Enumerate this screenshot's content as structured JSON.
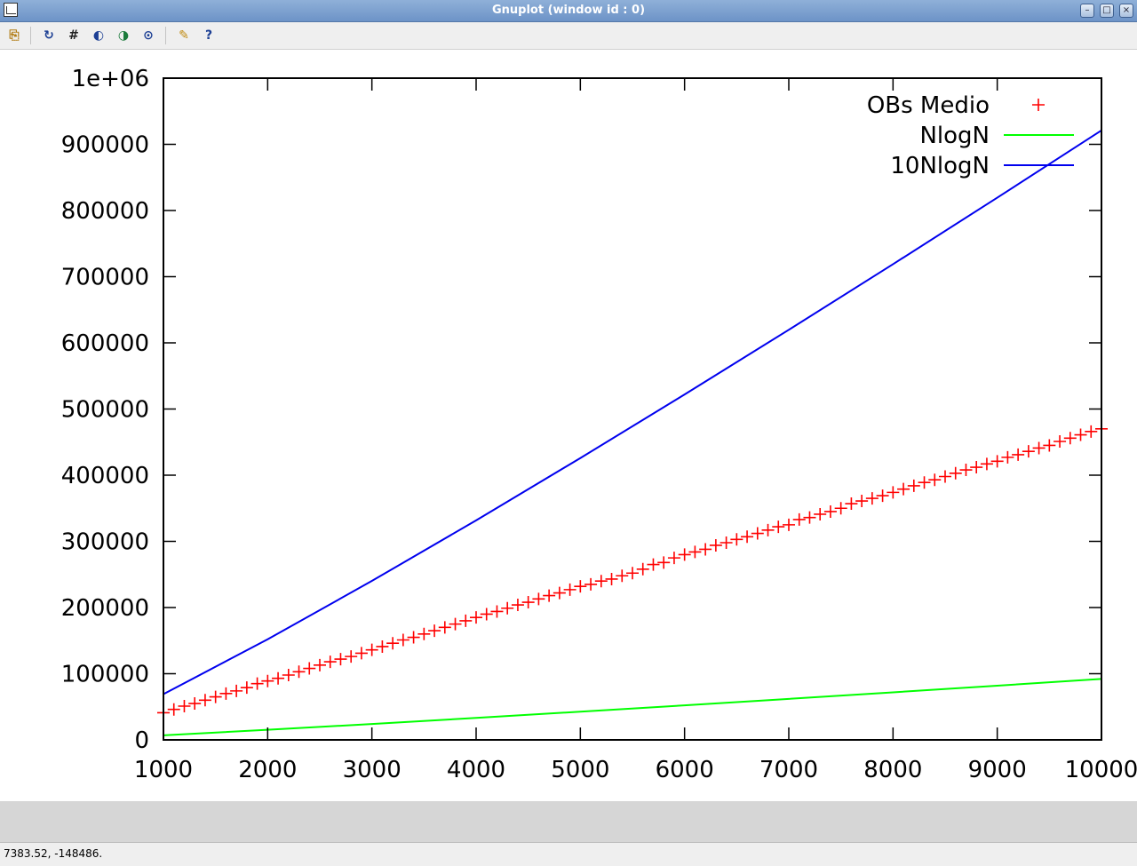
{
  "window": {
    "title": "Gnuplot (window id : 0)"
  },
  "toolbar": {
    "items": [
      "copy-to-clipboard",
      "replot",
      "toggle-grid",
      "previous-zoom",
      "next-zoom",
      "autoscale",
      "options",
      "help"
    ]
  },
  "status": {
    "coords": "7383.52, -148486."
  },
  "chart_data": {
    "type": "line",
    "title": "",
    "xlabel": "",
    "ylabel": "",
    "xlim": [
      1000,
      10000
    ],
    "ylim": [
      0,
      1000000
    ],
    "x_ticks": [
      1000,
      2000,
      3000,
      4000,
      5000,
      6000,
      7000,
      8000,
      9000,
      10000
    ],
    "y_ticks": [
      0,
      100000,
      200000,
      300000,
      400000,
      500000,
      600000,
      700000,
      800000,
      900000,
      1000000
    ],
    "x_tick_labels": [
      "1000",
      "2000",
      "3000",
      "4000",
      "5000",
      "6000",
      "7000",
      "8000",
      "9000",
      "10000"
    ],
    "y_tick_labels": [
      "0",
      "100000",
      "200000",
      "300000",
      "400000",
      "500000",
      "600000",
      "700000",
      "800000",
      "900000",
      "1e+06"
    ],
    "grid": false,
    "legend_position": "top-right",
    "series": [
      {
        "name": "OBs Medio",
        "style": "points",
        "marker": "+",
        "color": "#ff0000",
        "x": [
          1000,
          1100,
          1200,
          1300,
          1400,
          1500,
          1600,
          1700,
          1800,
          1900,
          2000,
          2100,
          2200,
          2300,
          2400,
          2500,
          2600,
          2700,
          2800,
          2900,
          3000,
          3100,
          3200,
          3300,
          3400,
          3500,
          3600,
          3700,
          3800,
          3900,
          4000,
          4100,
          4200,
          4300,
          4400,
          4500,
          4600,
          4700,
          4800,
          4900,
          5000,
          5100,
          5200,
          5300,
          5400,
          5500,
          5600,
          5700,
          5800,
          5900,
          6000,
          6100,
          6200,
          6300,
          6400,
          6500,
          6600,
          6700,
          6800,
          6900,
          7000,
          7100,
          7200,
          7300,
          7400,
          7500,
          7600,
          7700,
          7800,
          7900,
          8000,
          8100,
          8200,
          8300,
          8400,
          8500,
          8600,
          8700,
          8800,
          8900,
          9000,
          9100,
          9200,
          9300,
          9400,
          9500,
          9600,
          9700,
          9800,
          9900,
          10000
        ],
        "y": [
          41000,
          46000,
          51000,
          55000,
          60000,
          65000,
          70000,
          74000,
          79000,
          85000,
          89000,
          93000,
          98000,
          103000,
          108000,
          113000,
          118000,
          122000,
          126000,
          131000,
          136000,
          141000,
          146000,
          151000,
          155000,
          160000,
          165000,
          170000,
          175000,
          180000,
          185000,
          190000,
          194000,
          199000,
          204000,
          208000,
          213000,
          218000,
          222000,
          227000,
          232000,
          235000,
          240000,
          243000,
          248000,
          252000,
          258000,
          265000,
          268000,
          275000,
          280000,
          284000,
          288000,
          294000,
          298000,
          303000,
          307000,
          312000,
          317000,
          322000,
          325000,
          333000,
          336000,
          341000,
          345000,
          350000,
          357000,
          361000,
          365000,
          369000,
          374000,
          379000,
          384000,
          389000,
          393000,
          398000,
          403000,
          408000,
          412000,
          417000,
          421000,
          427000,
          431000,
          436000,
          441000,
          445000,
          451000,
          456000,
          461000,
          466000,
          470000
        ]
      },
      {
        "name": "NlogN",
        "style": "line",
        "color": "#00ff00",
        "x": [
          1000,
          2000,
          3000,
          4000,
          5000,
          6000,
          7000,
          8000,
          9000,
          10000
        ],
        "y": [
          6908,
          15202,
          24019,
          33176,
          42586,
          52197,
          61973,
          71888,
          81936,
          92103
        ]
      },
      {
        "name": "10NlogN",
        "style": "line",
        "color": "#0000ee",
        "x": [
          1000,
          2000,
          3000,
          4000,
          5000,
          6000,
          7000,
          8000,
          9000,
          10000
        ],
        "y": [
          69078,
          152018,
          240192,
          331764,
          425860,
          521967,
          619734,
          718883,
          819363,
          921034
        ]
      }
    ]
  }
}
